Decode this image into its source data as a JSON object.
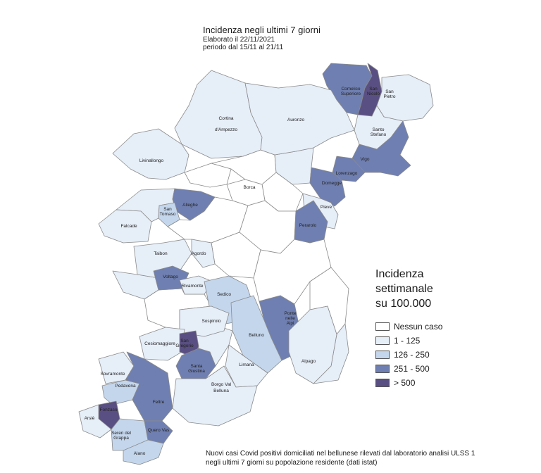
{
  "header": {
    "title": "Incidenza negli ultimi 7 giorni",
    "elaborated": "Elaborato il 22/11/2021",
    "period": "periodo dal 15/11 al 21/11"
  },
  "legend": {
    "title_lines": [
      "Incidenza",
      "settimanale",
      "su 100.000"
    ],
    "items": [
      {
        "label": "Nessun caso",
        "color": "#ffffff"
      },
      {
        "label": "1 - 125",
        "color": "#e6eef8"
      },
      {
        "label": "126 - 250",
        "color": "#c4d6ec"
      },
      {
        "label": "251 - 500",
        "color": "#6f7fb1"
      },
      {
        "label": "> 500",
        "color": "#5a4f82"
      }
    ]
  },
  "footnote": {
    "line1": "Nuovi casi Covid positivi domiciliati nel bellunese rilevati dal laboratorio analisi ULSS 1",
    "line2": "negli ultimi 7 giorni su popolazione residente (dati istat)"
  },
  "map": {
    "regions": [
      {
        "name": "Comelico Superiore",
        "class": 3
      },
      {
        "name": "San Nicolò",
        "class": 4
      },
      {
        "name": "San Pietro",
        "class": 1
      },
      {
        "name": "Santo Stefano",
        "class": 1
      },
      {
        "name": "Cortina d'Ampezzo",
        "class": 1
      },
      {
        "name": "Auronzo",
        "class": 1
      },
      {
        "name": "Livinallongo",
        "class": 1
      },
      {
        "name": "Vigo",
        "class": 3
      },
      {
        "name": "Lorenzago",
        "class": 3
      },
      {
        "name": "Domegge",
        "class": 3
      },
      {
        "name": "Borca",
        "class": 0
      },
      {
        "name": "Alleghe",
        "class": 3
      },
      {
        "name": "San Tomaso",
        "class": 2
      },
      {
        "name": "Falcade",
        "class": 1
      },
      {
        "name": "Pieve",
        "class": 1
      },
      {
        "name": "Perarolo",
        "class": 3
      },
      {
        "name": "Taibon",
        "class": 1
      },
      {
        "name": "Agordo",
        "class": 1
      },
      {
        "name": "Voltago",
        "class": 3
      },
      {
        "name": "Rivamonte",
        "class": 1
      },
      {
        "name": "Sedico",
        "class": 2
      },
      {
        "name": "Ponte nelle Alpi",
        "class": 3
      },
      {
        "name": "Sospirolo",
        "class": 1
      },
      {
        "name": "Belluno",
        "class": 2
      },
      {
        "name": "Cesiomaggiore",
        "class": 1
      },
      {
        "name": "San Gregorio",
        "class": 4
      },
      {
        "name": "Santa Giustina",
        "class": 3
      },
      {
        "name": "Alpago",
        "class": 1
      },
      {
        "name": "Limana",
        "class": 1
      },
      {
        "name": "Sovramonte",
        "class": 1
      },
      {
        "name": "Pedavena",
        "class": 2
      },
      {
        "name": "Borgo Val Belluna",
        "class": 1
      },
      {
        "name": "Feltre",
        "class": 3
      },
      {
        "name": "Fonzaso",
        "class": 4
      },
      {
        "name": "Arsiè",
        "class": 1
      },
      {
        "name": "Seren del Grappa",
        "class": 2
      },
      {
        "name": "Quero Vas",
        "class": 3
      },
      {
        "name": "Alano",
        "class": 2
      }
    ]
  }
}
